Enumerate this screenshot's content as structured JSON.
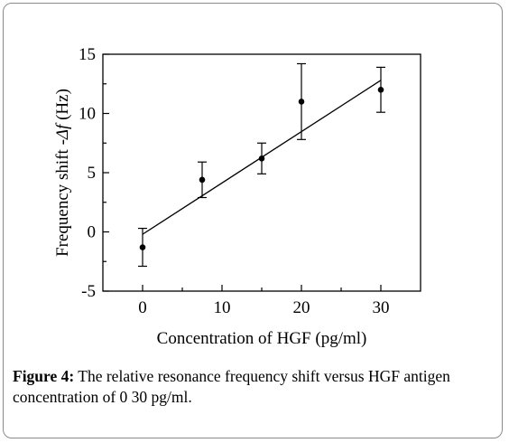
{
  "chart_data": {
    "type": "scatter",
    "xlabel": "Concentration of HGF  (pg/ml)",
    "ylabel_main": "Frequency shift -",
    "ylabel_symbol": "Δf",
    "ylabel_unit": " (Hz)",
    "xlim": [
      -5,
      35
    ],
    "ylim": [
      -5,
      15
    ],
    "x_ticks": [
      0,
      10,
      20,
      30
    ],
    "y_ticks": [
      -5,
      0,
      5,
      10,
      15
    ],
    "x_tick_labels": [
      "0",
      "10",
      "20",
      "30"
    ],
    "y_tick_labels": [
      "-5",
      "0",
      "5",
      "10",
      "15"
    ],
    "points": [
      {
        "x": 0,
        "y": -1.3,
        "err": 1.6
      },
      {
        "x": 7.5,
        "y": 4.4,
        "err": 1.5
      },
      {
        "x": 15,
        "y": 6.2,
        "err": 1.3
      },
      {
        "x": 20,
        "y": 11.0,
        "err": 3.2
      },
      {
        "x": 30,
        "y": 12.0,
        "err": 1.9
      }
    ],
    "fit_line": {
      "x": [
        0,
        30
      ],
      "y": [
        -0.2,
        12.8
      ]
    },
    "grid": false,
    "legend": "none"
  },
  "caption": {
    "label": "Figure 4:",
    "text": " The relative resonance frequency shift versus HGF antigen concentration of 0 30 pg/ml."
  }
}
